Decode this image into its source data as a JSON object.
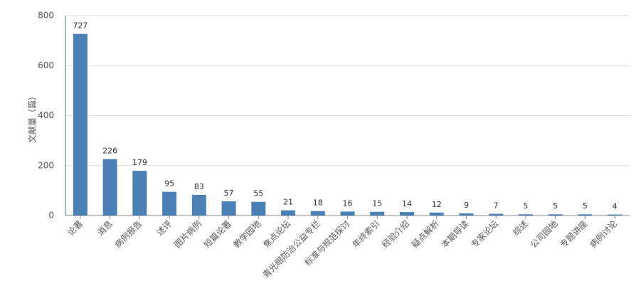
{
  "chart_data": {
    "type": "bar",
    "y_label": "文献量（篇）",
    "categories": [
      "论著",
      "消息",
      "病例报告",
      "述评",
      "图片病例",
      "短篇论著",
      "教学园地",
      "焦点论坛",
      "青光眼防治公益专栏",
      "标准与规范探讨",
      "年终索引",
      "经验介绍",
      "疑点解析",
      "本期导读",
      "专家论坛",
      "综述",
      "公司园地",
      "专题讲座",
      "病例讨论"
    ],
    "values": [
      727,
      226,
      179,
      95,
      83,
      57,
      55,
      21,
      18,
      16,
      15,
      14,
      12,
      9,
      7,
      5,
      5,
      5,
      4
    ],
    "color": "#4a80b5",
    "ylim": [
      0,
      800
    ],
    "yticks": [
      0,
      200,
      400,
      600,
      800
    ],
    "grid": true
  }
}
